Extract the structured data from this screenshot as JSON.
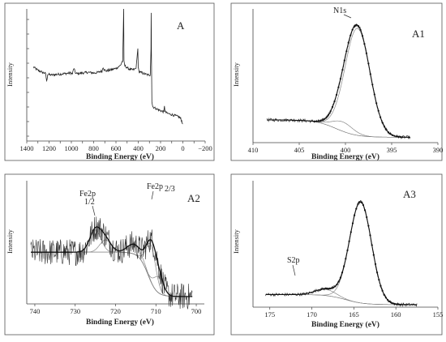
{
  "chart_data": [
    {
      "panel": "A",
      "type": "line",
      "xlabel": "Binding Energy (eV)",
      "ylabel": "Intensity",
      "xlim": [
        1400,
        -200
      ],
      "x_ticks": [
        1400,
        1300,
        1200,
        1100,
        1000,
        900,
        800,
        700,
        600,
        500,
        400,
        300,
        200,
        100,
        0,
        -100,
        -200
      ],
      "x_tick_labels": [
        "1400",
        "1200",
        "1000",
        "800",
        "600",
        "400",
        "200",
        "0",
        "−200"
      ],
      "ylim": [
        0,
        1
      ],
      "series": [
        {
          "role": "survey",
          "x": [
            1340,
            1300,
            1260,
            1230,
            1222,
            1212,
            1180,
            1120,
            1060,
            1010,
            990,
            978,
            960,
            900,
            850,
            800,
            760,
            725,
            715,
            705,
            690,
            640,
            600,
            570,
            555,
            545,
            540,
            531,
            528,
            520,
            500,
            470,
            440,
            420,
            404,
            400,
            395,
            380,
            350,
            310,
            292,
            286,
            284,
            282,
            278,
            270,
            250,
            230,
            200,
            170,
            165,
            160,
            140,
            100,
            60,
            30,
            20,
            10,
            0
          ],
          "y": [
            0.56,
            0.535,
            0.52,
            0.51,
            0.45,
            0.505,
            0.5,
            0.505,
            0.51,
            0.515,
            0.51,
            0.55,
            0.51,
            0.515,
            0.52,
            0.515,
            0.52,
            0.53,
            0.56,
            0.54,
            0.53,
            0.54,
            0.55,
            0.565,
            0.58,
            0.6,
            0.6,
            1.0,
            0.6,
            0.57,
            0.555,
            0.54,
            0.54,
            0.55,
            0.7,
            0.56,
            0.53,
            0.52,
            0.51,
            0.5,
            0.5,
            0.7,
            0.97,
            0.7,
            0.3,
            0.26,
            0.25,
            0.24,
            0.23,
            0.22,
            0.27,
            0.22,
            0.21,
            0.2,
            0.19,
            0.18,
            0.17,
            0.15,
            0.13
          ]
        }
      ],
      "annotations": [
        {
          "text": "A",
          "role": "panel-label"
        }
      ]
    },
    {
      "panel": "A1",
      "type": "line",
      "xlabel": "Binding Energy (eV)",
      "ylabel": "Intensity",
      "xlim": [
        410,
        390
      ],
      "x_ticks": [
        410,
        405,
        400,
        395,
        390
      ],
      "ylim": [
        0,
        1
      ],
      "background": {
        "x0": 408.5,
        "y0": 0.17,
        "x1": 393.0,
        "y1": 0.04,
        "xm": 401.0
      },
      "peaks": [
        {
          "center": 398.7,
          "amp": 0.8,
          "width": 1.35
        },
        {
          "center": 400.3,
          "amp": 0.07,
          "width": 1.1
        }
      ],
      "x_range": [
        408.5,
        393.0
      ],
      "annotations": [
        {
          "text": "A1",
          "role": "panel-label"
        },
        {
          "text": "N1s",
          "x": 398.7
        }
      ]
    },
    {
      "panel": "A2",
      "type": "line",
      "xlabel": "Binding Energy (eV)",
      "ylabel": "Intensity",
      "xlim": [
        742,
        698
      ],
      "x_ticks": [
        740,
        730,
        720,
        710,
        700
      ],
      "ylim": [
        0,
        1
      ],
      "background": {
        "x0": 741.0,
        "y0": 0.42,
        "x1": 701.0,
        "y1": 0.06,
        "xm": 712.0
      },
      "peaks": [
        {
          "center": 725.0,
          "amp": 0.18,
          "width": 1.4
        },
        {
          "center": 722.5,
          "amp": 0.1,
          "width": 1.4
        },
        {
          "center": 715.3,
          "amp": 0.08,
          "width": 1.7
        },
        {
          "center": 711.2,
          "amp": 0.3,
          "width": 1.2
        },
        {
          "center": 709.3,
          "amp": 0.13,
          "width": 1.2
        }
      ],
      "x_range": [
        741.0,
        701.0
      ],
      "annotations": [
        {
          "text": "A2",
          "role": "panel-label"
        },
        {
          "text": "Fe2p",
          "x": 725.0
        },
        {
          "text": "1/2",
          "x": 725.0
        },
        {
          "text": "Fe2p",
          "x": 711.2
        },
        {
          "text": "2/3",
          "x": 711.2
        }
      ]
    },
    {
      "panel": "A3",
      "type": "line",
      "xlabel": "Binding Energy (eV)",
      "ylabel": "Intensity",
      "xlim": [
        177,
        155
      ],
      "x_ticks": [
        175,
        170,
        165,
        160,
        155
      ],
      "ylim": [
        0,
        1
      ],
      "background": {
        "x0": 175.5,
        "y0": 0.1,
        "x1": 157.5,
        "y1": 0.02,
        "xm": 166.0
      },
      "peaks": [
        {
          "center": 164.2,
          "amp": 0.8,
          "width": 1.3
        },
        {
          "center": 168.4,
          "amp": 0.05,
          "width": 1.2
        }
      ],
      "x_range": [
        175.5,
        157.5
      ],
      "annotations": [
        {
          "text": "A3",
          "role": "panel-label"
        },
        {
          "text": "S2p",
          "x": 168.4
        }
      ]
    }
  ],
  "colors": {
    "data": "#222222",
    "fit": "#6f6f6f",
    "frame": "#555555"
  }
}
